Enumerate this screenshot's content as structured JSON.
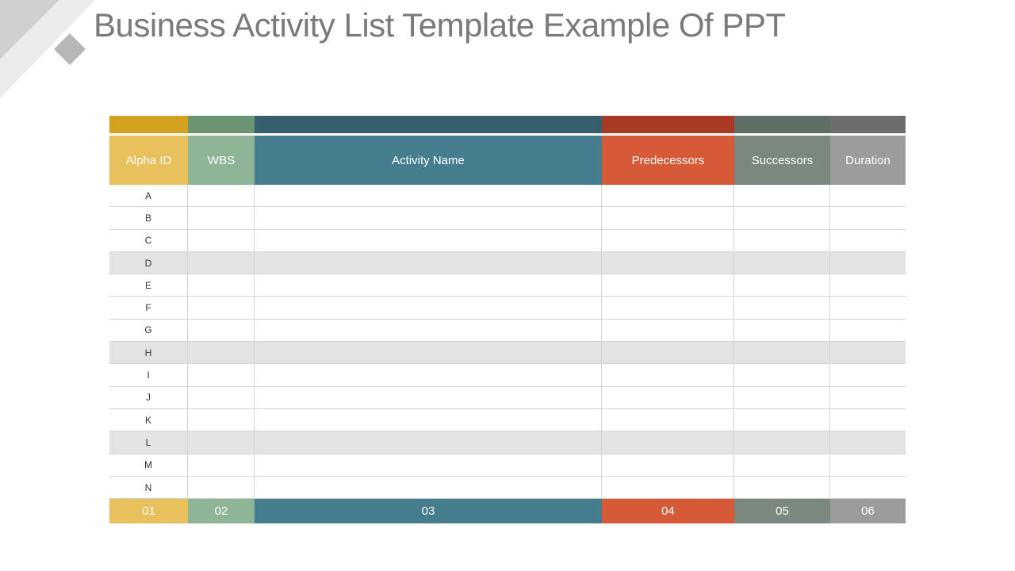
{
  "title": "Business Activity List Template Example Of PPT",
  "colors": {
    "strip": [
      "#d4a21e",
      "#6a9472",
      "#385f6d",
      "#a83a24",
      "#5f6f66",
      "#6d6d6d"
    ],
    "header": [
      "#e8c05c",
      "#8fb597",
      "#467d8e",
      "#d65a38",
      "#7a887f",
      "#9c9c9c"
    ],
    "shade": "#e3e3e3"
  },
  "columns": [
    "Alpha ID",
    "WBS",
    "Activity Name",
    "Predecessors",
    "Successors",
    "Duration"
  ],
  "rows": [
    "A",
    "B",
    "C",
    "D",
    "E",
    "F",
    "G",
    "H",
    "I",
    "J",
    "K",
    "L",
    "M",
    "N"
  ],
  "shaded_rows": [
    "D",
    "H",
    "L"
  ],
  "footer": [
    "01",
    "02",
    "03",
    "04",
    "05",
    "06"
  ]
}
